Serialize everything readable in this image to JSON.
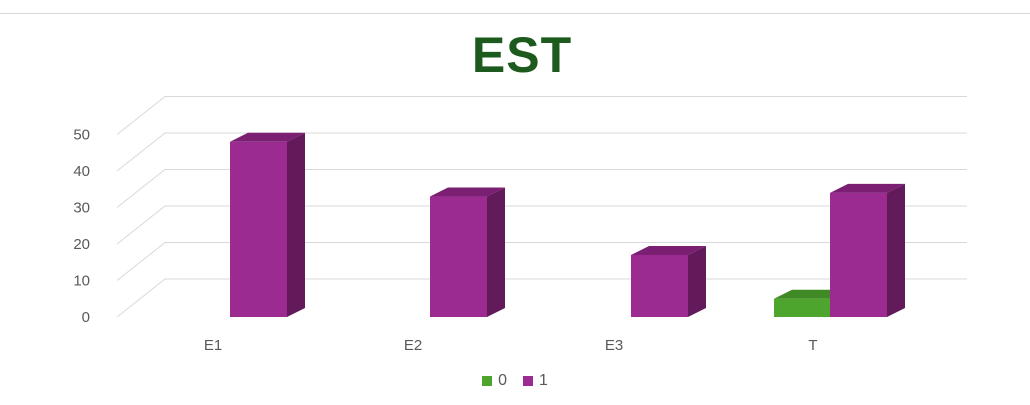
{
  "chart_data": {
    "type": "bar",
    "title": "EST",
    "categories": [
      "E1",
      "E2",
      "E3",
      "T"
    ],
    "series": [
      {
        "name": "0",
        "values": [
          0,
          0,
          0,
          5
        ],
        "color": "#4ea52e",
        "top_color": "#3f8a24",
        "side_color": "#2f6b1a"
      },
      {
        "name": "1",
        "values": [
          48,
          33,
          17,
          34
        ],
        "color": "#9b2a91",
        "top_color": "#7a1f72",
        "side_color": "#621a5b"
      }
    ],
    "ylim": [
      0,
      50
    ],
    "yticks": [
      0,
      10,
      20,
      30,
      40,
      50
    ],
    "grid": true,
    "legend_position": "bottom"
  }
}
